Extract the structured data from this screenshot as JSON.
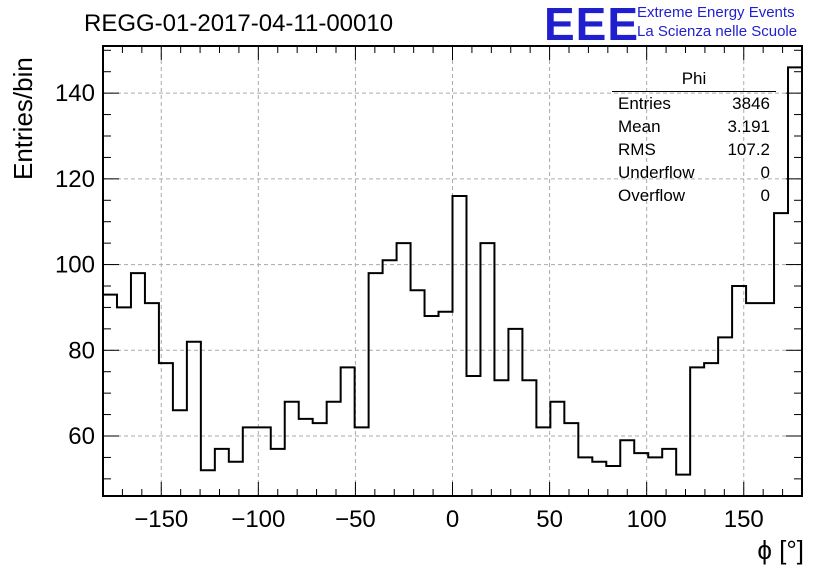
{
  "title": "REGG-01-2017-04-11-00010",
  "logo": {
    "mark": "EEE",
    "line1": "Extreme Energy Events",
    "line2": "La Scienza nelle Scuole",
    "color": "#1f1fd0"
  },
  "stats": {
    "name": "Phi",
    "rows": [
      {
        "label": "Entries",
        "value": "3846"
      },
      {
        "label": "Mean",
        "value": "3.191"
      },
      {
        "label": "RMS",
        "value": "107.2"
      },
      {
        "label": "Underflow",
        "value": "0"
      },
      {
        "label": "Overflow",
        "value": "0"
      }
    ]
  },
  "chart_data": {
    "type": "bar",
    "style": "step-histogram",
    "title": "REGG-01-2017-04-11-00010",
    "xlabel": "ϕ [°]",
    "ylabel": "Entries/bin",
    "xlim": [
      -180,
      180
    ],
    "ylim": [
      46,
      151
    ],
    "bin_width": 7.2,
    "xticks": [
      -150,
      -100,
      -50,
      0,
      50,
      100,
      150
    ],
    "yticks": [
      60,
      80,
      100,
      120,
      140
    ],
    "grid": true,
    "values": [
      93,
      90,
      98,
      91,
      77,
      66,
      82,
      52,
      57,
      54,
      62,
      62,
      57,
      68,
      64,
      63,
      68,
      76,
      62,
      98,
      101,
      105,
      94,
      88,
      89,
      116,
      74,
      105,
      73,
      85,
      73,
      62,
      68,
      63,
      55,
      54,
      53,
      59,
      56,
      55,
      57,
      51,
      76,
      77,
      83,
      95,
      91,
      91,
      112,
      146
    ]
  }
}
